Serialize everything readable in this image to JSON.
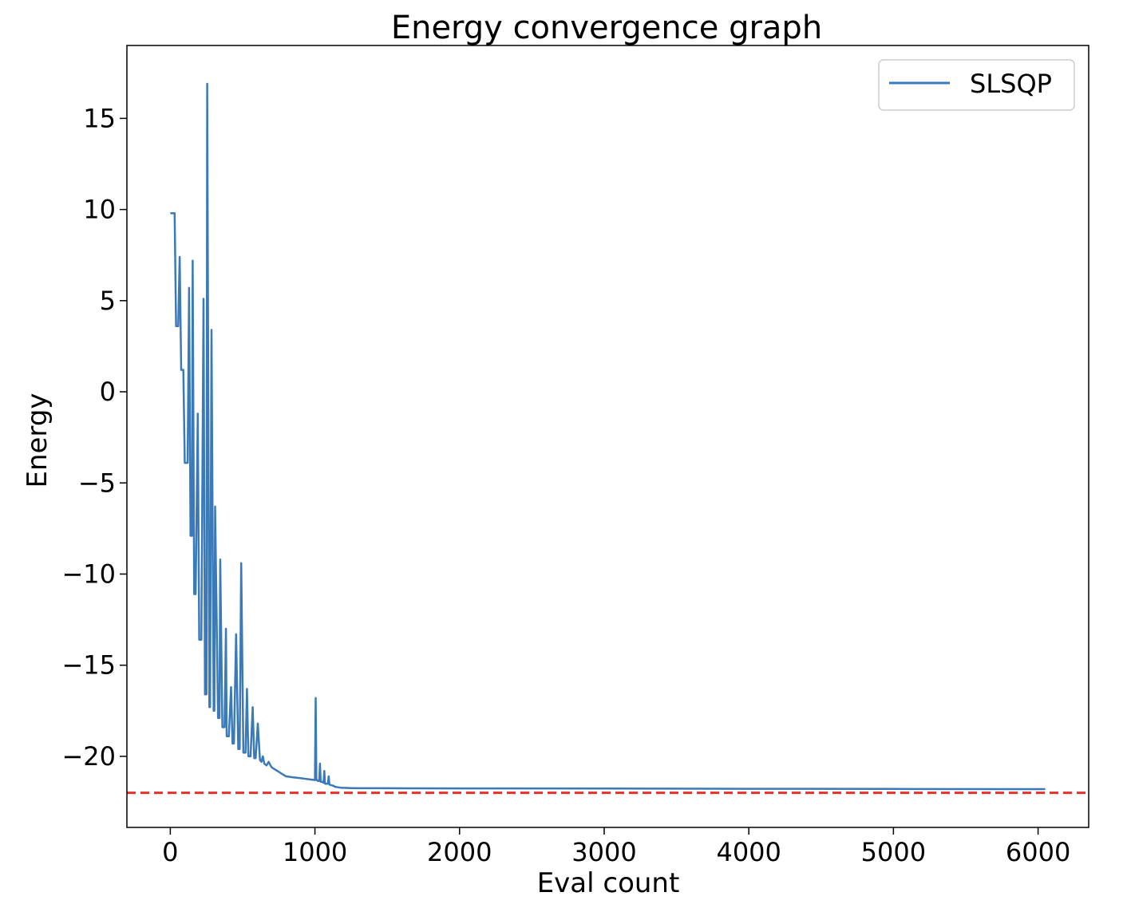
{
  "chart_data": {
    "type": "line",
    "title": "Energy convergence graph",
    "xlabel": "Eval count",
    "ylabel": "Energy",
    "xlim": [
      -300,
      6350
    ],
    "ylim": [
      -23.9,
      19.0
    ],
    "xticks": [
      0,
      1000,
      2000,
      3000,
      4000,
      5000,
      6000
    ],
    "yticks": [
      -20,
      -15,
      -10,
      -5,
      0,
      5,
      10,
      15
    ],
    "grid": false,
    "legend_position": "top-right",
    "series": [
      {
        "name": "SLSQP",
        "color": "#3a7ab8",
        "x": [
          0,
          20,
          30,
          40,
          55,
          65,
          75,
          90,
          100,
          120,
          130,
          140,
          150,
          155,
          165,
          175,
          190,
          200,
          215,
          230,
          240,
          250,
          255,
          270,
          275,
          285,
          300,
          305,
          310,
          330,
          340,
          345,
          360,
          375,
          385,
          390,
          405,
          420,
          430,
          440,
          455,
          470,
          480,
          490,
          505,
          520,
          530,
          540,
          555,
          570,
          580,
          590,
          605,
          620,
          630,
          640,
          650,
          665,
          680,
          700,
          720,
          740,
          760,
          780,
          800,
          850,
          900,
          950,
          1000,
          1005,
          1010,
          1015,
          1020,
          1030,
          1035,
          1040,
          1050,
          1060,
          1065,
          1070,
          1080,
          1090,
          1095,
          1100,
          1120,
          1130,
          1135,
          1140,
          1160,
          1180,
          1200,
          1250,
          1300,
          1350,
          1400,
          1500,
          2000,
          3000,
          4000,
          5000,
          6050
        ],
        "y": [
          9.8,
          9.8,
          9.8,
          3.6,
          3.6,
          7.4,
          1.2,
          1.2,
          -3.9,
          -3.9,
          5.7,
          -7.9,
          -7.9,
          7.2,
          -11.1,
          -11.1,
          -1.2,
          -13.6,
          -13.6,
          5.1,
          -16.6,
          -16.6,
          16.9,
          -17.3,
          -17.3,
          3.4,
          -17.5,
          -17.5,
          -6.3,
          -17.9,
          -17.9,
          -9.2,
          -18.4,
          -18.4,
          -13.0,
          -18.9,
          -18.9,
          -16.2,
          -19.3,
          -19.3,
          -13.3,
          -19.6,
          -19.6,
          -9.4,
          -19.8,
          -19.8,
          -16.3,
          -20.0,
          -20.0,
          -17.3,
          -20.1,
          -20.1,
          -18.2,
          -20.2,
          -20.3,
          -20.0,
          -20.4,
          -20.5,
          -20.3,
          -20.6,
          -20.7,
          -20.8,
          -20.9,
          -21.0,
          -21.1,
          -21.15,
          -21.2,
          -21.25,
          -21.3,
          -16.8,
          -21.3,
          -21.3,
          -21.35,
          -21.35,
          -20.4,
          -21.4,
          -21.4,
          -21.45,
          -20.8,
          -21.5,
          -21.5,
          -21.5,
          -21.1,
          -21.55,
          -21.6,
          -21.62,
          -21.65,
          -21.67,
          -21.7,
          -21.72,
          -21.73,
          -21.74,
          -21.75,
          -21.75,
          -21.75,
          -21.75,
          -21.76,
          -21.77,
          -21.78,
          -21.79,
          -21.8
        ]
      }
    ],
    "reference_line": {
      "y": -22.0,
      "color": "#e8302a",
      "style": "dashed"
    }
  }
}
